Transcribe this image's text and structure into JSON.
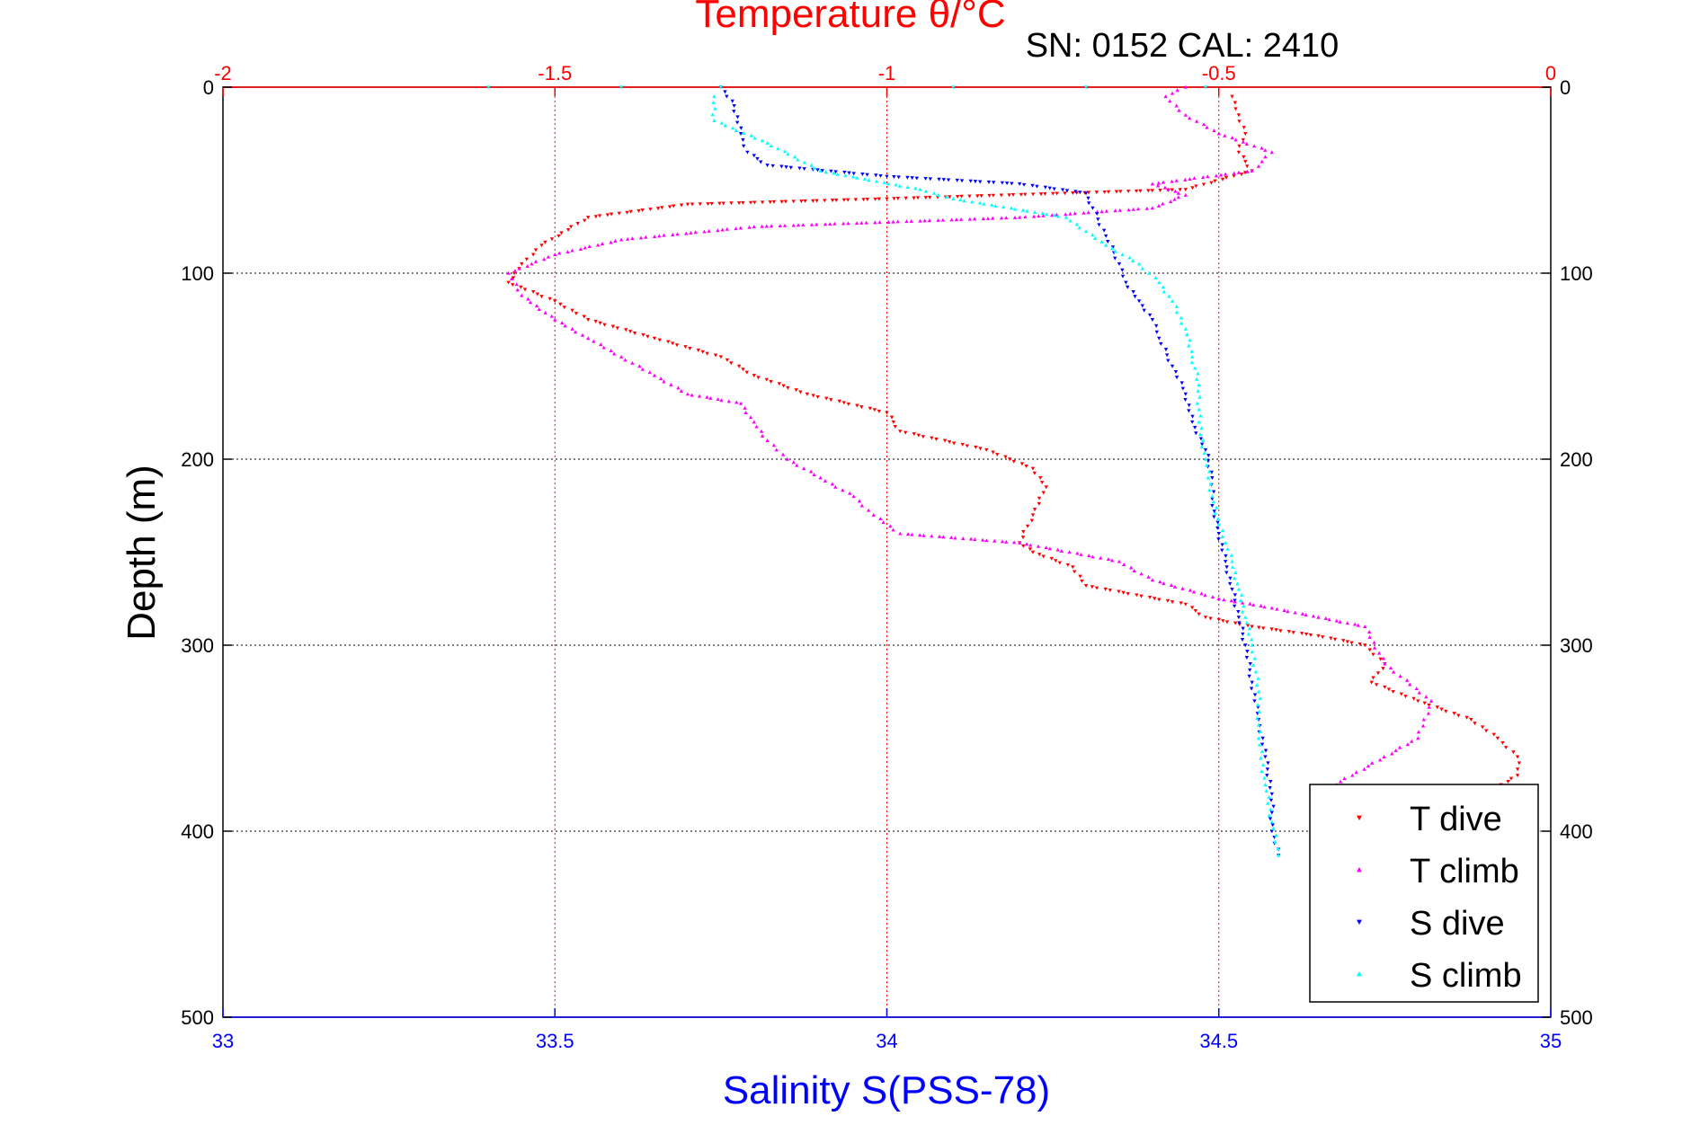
{
  "chart_data": {
    "type": "scatter",
    "title": "Temperature θ/°C",
    "subtitle": "SN: 0152  CAL: 2410",
    "xlabel": "Salinity S(PSS-78)",
    "ylabel": "Depth (m)",
    "x_top": {
      "label": "Temperature θ/°C",
      "range": [
        -2,
        0
      ],
      "ticks": [
        "-2",
        "-1.5",
        "-1",
        "-0.5",
        "0"
      ],
      "tick_values": [
        -2,
        -1.5,
        -1,
        -0.5,
        0
      ],
      "color": "#ff0000"
    },
    "x_bottom": {
      "label": "Salinity S(PSS-78)",
      "range": [
        33,
        35
      ],
      "ticks": [
        "33",
        "33.5",
        "34",
        "34.5",
        "35"
      ],
      "tick_values": [
        33,
        33.5,
        34,
        34.5,
        35
      ],
      "color": "#0000ff"
    },
    "y": {
      "range": [
        0,
        500
      ],
      "reversed": true,
      "ticks": [
        "0",
        "100",
        "200",
        "300",
        "400",
        "500"
      ],
      "tick_values": [
        0,
        100,
        200,
        300,
        400,
        500
      ]
    },
    "grid": true,
    "legend_position": "bottom-right",
    "series": [
      {
        "name": "T dive",
        "axis": "top",
        "marker": "triangle-down",
        "color": "#ff0000",
        "points": [
          [
            -0.48,
            5
          ],
          [
            -0.47,
            15
          ],
          [
            -0.46,
            25
          ],
          [
            -0.47,
            35
          ],
          [
            -0.45,
            45
          ],
          [
            -0.55,
            55
          ],
          [
            -1.0,
            60
          ],
          [
            -1.3,
            63
          ],
          [
            -1.45,
            70
          ],
          [
            -1.52,
            85
          ],
          [
            -1.55,
            95
          ],
          [
            -1.57,
            105
          ],
          [
            -1.5,
            115
          ],
          [
            -1.45,
            125
          ],
          [
            -1.35,
            135
          ],
          [
            -1.25,
            145
          ],
          [
            -1.2,
            155
          ],
          [
            -1.12,
            165
          ],
          [
            -1.0,
            175
          ],
          [
            -0.98,
            185
          ],
          [
            -0.85,
            195
          ],
          [
            -0.78,
            205
          ],
          [
            -0.76,
            215
          ],
          [
            -0.78,
            230
          ],
          [
            -0.8,
            245
          ],
          [
            -0.78,
            250
          ],
          [
            -0.72,
            258
          ],
          [
            -0.7,
            268
          ],
          [
            -0.55,
            278
          ],
          [
            -0.52,
            285
          ],
          [
            -0.45,
            290
          ],
          [
            -0.35,
            295
          ],
          [
            -0.28,
            300
          ],
          [
            -0.25,
            310
          ],
          [
            -0.27,
            320
          ],
          [
            -0.2,
            330
          ],
          [
            -0.12,
            340
          ],
          [
            -0.08,
            350
          ],
          [
            -0.05,
            360
          ],
          [
            -0.05,
            370
          ],
          [
            -0.1,
            380
          ]
        ]
      },
      {
        "name": "T climb",
        "axis": "top",
        "marker": "triangle-up",
        "color": "#ff00ff",
        "points": [
          [
            -0.35,
            380
          ],
          [
            -0.2,
            350
          ],
          [
            -0.18,
            330
          ],
          [
            -0.25,
            310
          ],
          [
            -0.28,
            290
          ],
          [
            -0.35,
            285
          ],
          [
            -0.42,
            280
          ],
          [
            -0.5,
            275
          ],
          [
            -0.6,
            265
          ],
          [
            -0.65,
            255
          ],
          [
            -0.8,
            245
          ],
          [
            -0.98,
            240
          ],
          [
            -1.02,
            230
          ],
          [
            -1.05,
            220
          ],
          [
            -1.1,
            210
          ],
          [
            -1.15,
            200
          ],
          [
            -1.18,
            190
          ],
          [
            -1.2,
            180
          ],
          [
            -1.22,
            170
          ],
          [
            -1.3,
            165
          ],
          [
            -1.35,
            155
          ],
          [
            -1.4,
            145
          ],
          [
            -1.45,
            135
          ],
          [
            -1.5,
            125
          ],
          [
            -1.55,
            112
          ],
          [
            -1.57,
            100
          ],
          [
            -1.5,
            90
          ],
          [
            -1.4,
            82
          ],
          [
            -1.2,
            75
          ],
          [
            -0.8,
            70
          ],
          [
            -0.6,
            65
          ],
          [
            -0.55,
            58
          ],
          [
            -0.6,
            52
          ],
          [
            -0.45,
            45
          ],
          [
            -0.42,
            35
          ],
          [
            -0.5,
            25
          ],
          [
            -0.55,
            15
          ],
          [
            -0.58,
            5
          ],
          [
            -0.55,
            0
          ]
        ]
      },
      {
        "name": "S dive",
        "axis": "bottom",
        "marker": "triangle-down",
        "color": "#0000ff",
        "points": [
          [
            33.75,
            0
          ],
          [
            33.77,
            10
          ],
          [
            33.78,
            25
          ],
          [
            33.79,
            35
          ],
          [
            33.82,
            42
          ],
          [
            34.0,
            48
          ],
          [
            34.2,
            52
          ],
          [
            34.3,
            57
          ],
          [
            34.31,
            65
          ],
          [
            34.33,
            80
          ],
          [
            34.35,
            95
          ],
          [
            34.36,
            105
          ],
          [
            34.38,
            115
          ],
          [
            34.4,
            125
          ],
          [
            34.41,
            135
          ],
          [
            34.43,
            150
          ],
          [
            34.45,
            165
          ],
          [
            34.46,
            180
          ],
          [
            34.48,
            195
          ],
          [
            34.49,
            210
          ],
          [
            34.49,
            225
          ],
          [
            34.5,
            240
          ],
          [
            34.51,
            255
          ],
          [
            34.52,
            270
          ],
          [
            34.53,
            285
          ],
          [
            34.54,
            300
          ],
          [
            34.55,
            320
          ],
          [
            34.56,
            340
          ],
          [
            34.57,
            360
          ],
          [
            34.58,
            380
          ],
          [
            34.58,
            400
          ],
          [
            34.59,
            413
          ]
        ]
      },
      {
        "name": "S climb",
        "axis": "bottom",
        "marker": "triangle-up",
        "color": "#00ffff",
        "points": [
          [
            34.59,
            413
          ],
          [
            34.58,
            395
          ],
          [
            34.57,
            375
          ],
          [
            34.56,
            350
          ],
          [
            34.56,
            325
          ],
          [
            34.55,
            300
          ],
          [
            34.54,
            285
          ],
          [
            34.53,
            270
          ],
          [
            34.52,
            255
          ],
          [
            34.51,
            245
          ],
          [
            34.5,
            235
          ],
          [
            34.49,
            220
          ],
          [
            34.48,
            200
          ],
          [
            34.47,
            180
          ],
          [
            34.47,
            160
          ],
          [
            34.46,
            145
          ],
          [
            34.45,
            130
          ],
          [
            34.43,
            115
          ],
          [
            34.41,
            105
          ],
          [
            34.38,
            95
          ],
          [
            34.33,
            85
          ],
          [
            34.27,
            70
          ],
          [
            34.1,
            60
          ],
          [
            34.05,
            55
          ],
          [
            33.9,
            45
          ],
          [
            33.82,
            30
          ],
          [
            33.74,
            18
          ],
          [
            33.74,
            5
          ]
        ]
      }
    ],
    "surface_outliers": {
      "points_top": [
        [
          -1.6,
          0
        ],
        [
          -1.4,
          0
        ],
        [
          -1.25,
          0
        ],
        [
          -0.9,
          0
        ],
        [
          -0.7,
          0
        ],
        [
          -0.52,
          0
        ]
      ]
    }
  }
}
